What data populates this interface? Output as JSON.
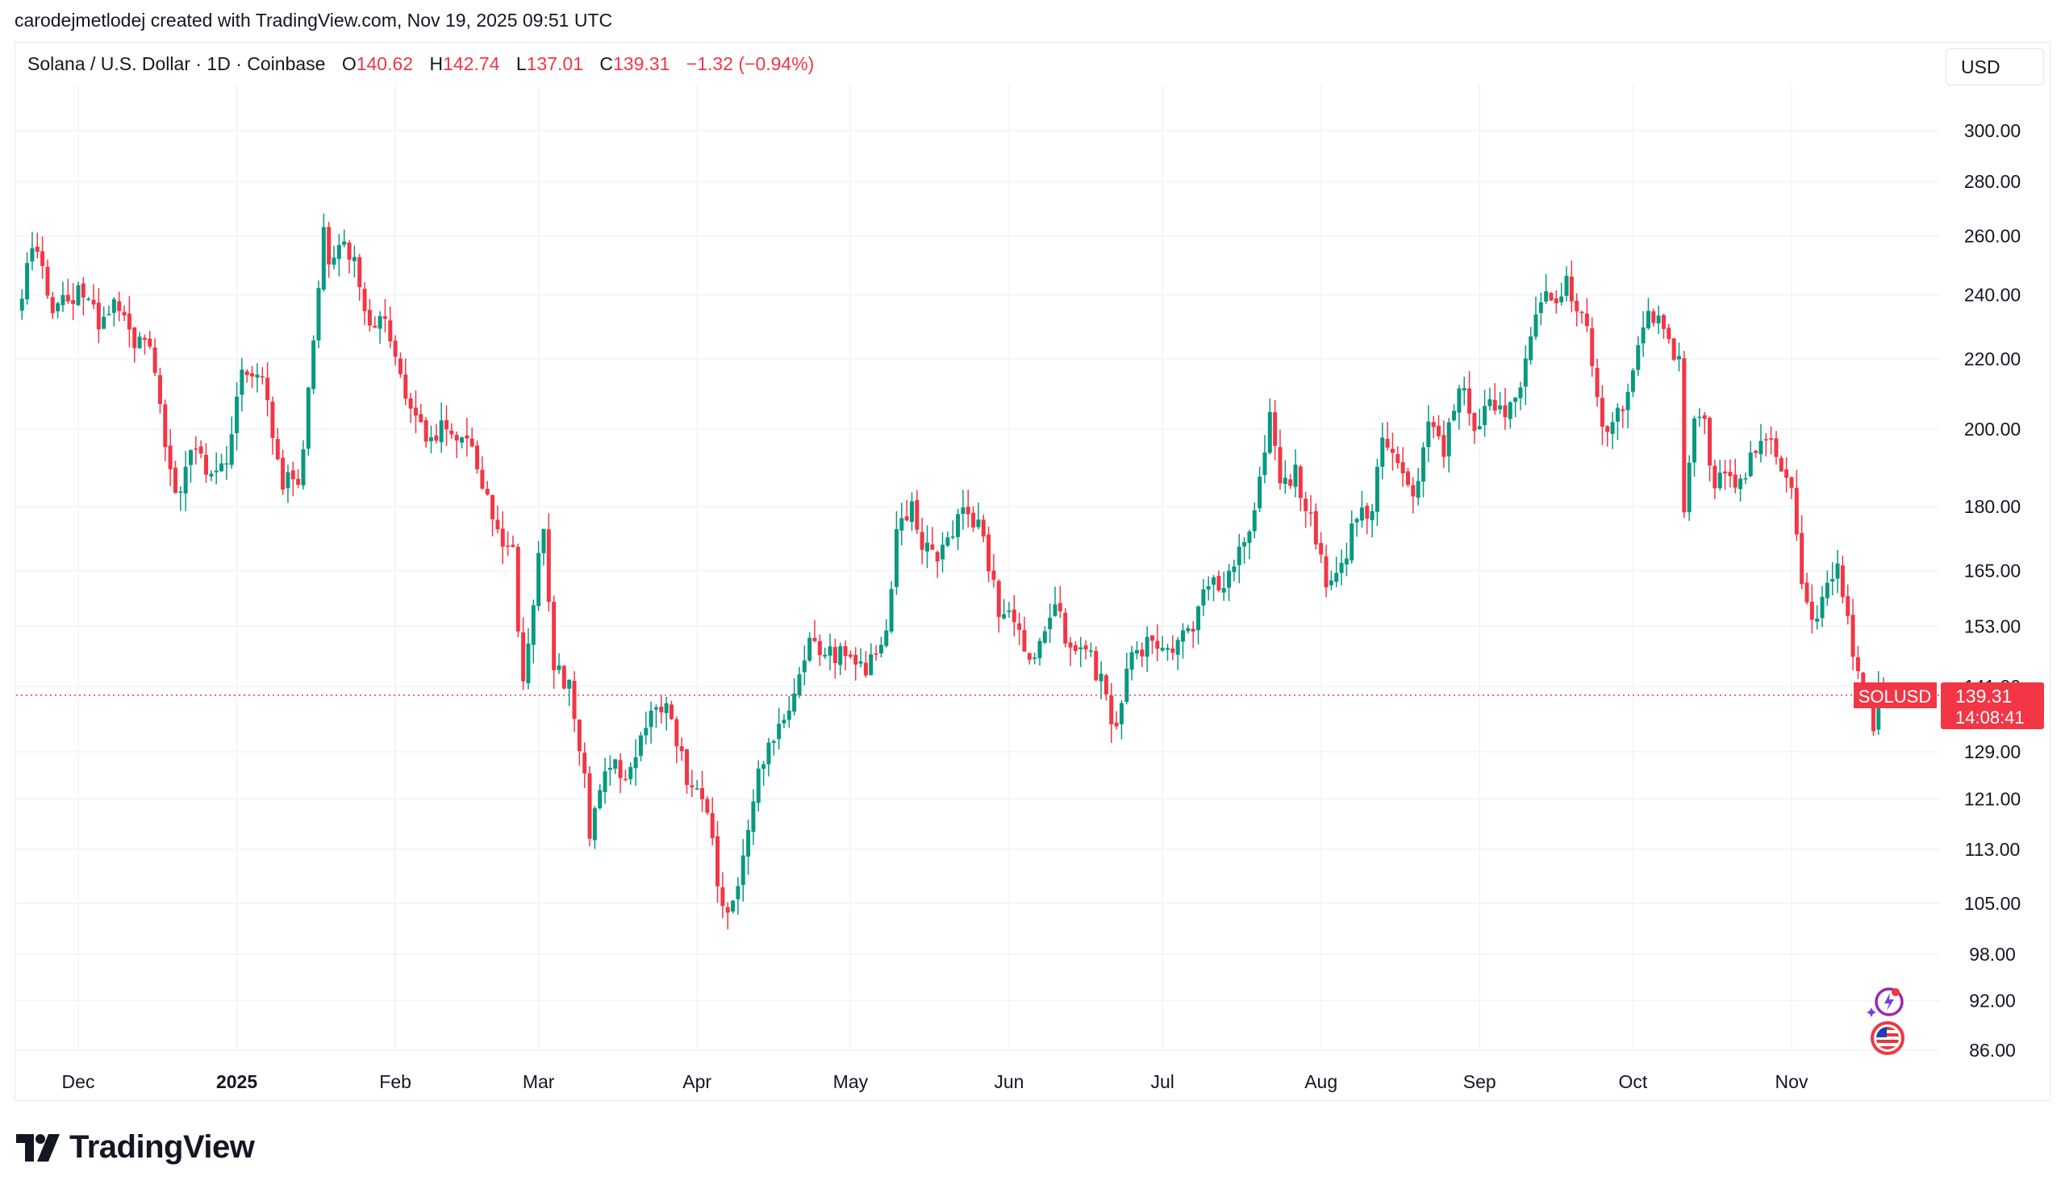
{
  "header": {
    "credit": "carodejmetlodej created with TradingView.com, Nov 19, 2025 09:51 UTC"
  },
  "legend": {
    "symbol": "Solana / U.S. Dollar · 1D · Coinbase",
    "open_label": "O",
    "open": "140.62",
    "high_label": "H",
    "high": "142.74",
    "low_label": "L",
    "low": "137.01",
    "close_label": "C",
    "close": "139.31",
    "change": "−1.32 (−0.94%)"
  },
  "currency": "USD",
  "price_tag": {
    "ticker": "SOLUSD",
    "price": "139.31",
    "countdown": "14:08:41"
  },
  "brand": "TradingView",
  "colors": {
    "up": "#089981",
    "down": "#f23645",
    "grid": "#f0f3fa",
    "axis_text": "#131722"
  },
  "icons": [
    "tradingview-logo-icon",
    "ai-spark-badge-icon",
    "us-flag-badge-icon"
  ],
  "chart_data": {
    "type": "candlestick",
    "title": "Solana / U.S. Dollar · 1D · Coinbase",
    "scale": "log",
    "y_ticks": [
      300,
      280,
      260,
      240,
      220,
      200,
      180,
      165,
      153,
      141,
      129,
      121,
      113,
      105,
      98,
      92,
      86
    ],
    "y_tick_labels": [
      "300.00",
      "280.00",
      "260.00",
      "240.00",
      "220.00",
      "200.00",
      "180.00",
      "165.00",
      "153.00",
      "141.00",
      "129.00",
      "121.00",
      "113.00",
      "105.00",
      "98.00",
      "92.00",
      "86.00"
    ],
    "x_ticks": [
      {
        "label": "Dec",
        "date": "2024-12-01",
        "bold": false
      },
      {
        "label": "2025",
        "date": "2025-01-01",
        "bold": true
      },
      {
        "label": "Feb",
        "date": "2025-02-01",
        "bold": false
      },
      {
        "label": "Mar",
        "date": "2025-03-01",
        "bold": false
      },
      {
        "label": "Apr",
        "date": "2025-04-01",
        "bold": false
      },
      {
        "label": "May",
        "date": "2025-05-01",
        "bold": false
      },
      {
        "label": "Jun",
        "date": "2025-06-01",
        "bold": false
      },
      {
        "label": "Jul",
        "date": "2025-07-01",
        "bold": false
      },
      {
        "label": "Aug",
        "date": "2025-08-01",
        "bold": false
      },
      {
        "label": "Sep",
        "date": "2025-09-01",
        "bold": false
      },
      {
        "label": "Oct",
        "date": "2025-10-01",
        "bold": false
      },
      {
        "label": "Nov",
        "date": "2025-11-01",
        "bold": false
      }
    ],
    "x_range": [
      "2024-11-20",
      "2025-12-11"
    ],
    "ylim": [
      86,
      310
    ],
    "current_price": 139.31,
    "close_path": [
      {
        "date": "2024-11-20",
        "close": 238
      },
      {
        "date": "2024-11-22",
        "close": 258
      },
      {
        "date": "2024-11-26",
        "close": 236
      },
      {
        "date": "2024-12-01",
        "close": 240
      },
      {
        "date": "2024-12-05",
        "close": 232
      },
      {
        "date": "2024-12-08",
        "close": 236
      },
      {
        "date": "2024-12-12",
        "close": 226
      },
      {
        "date": "2024-12-15",
        "close": 221
      },
      {
        "date": "2024-12-19",
        "close": 190
      },
      {
        "date": "2024-12-21",
        "close": 182
      },
      {
        "date": "2024-12-23",
        "close": 195
      },
      {
        "date": "2024-12-27",
        "close": 188
      },
      {
        "date": "2024-12-30",
        "close": 192
      },
      {
        "date": "2025-01-02",
        "close": 214
      },
      {
        "date": "2025-01-06",
        "close": 216
      },
      {
        "date": "2025-01-08",
        "close": 196
      },
      {
        "date": "2025-01-10",
        "close": 187
      },
      {
        "date": "2025-01-13",
        "close": 184
      },
      {
        "date": "2025-01-15",
        "close": 210
      },
      {
        "date": "2025-01-18",
        "close": 262
      },
      {
        "date": "2025-01-19",
        "close": 248
      },
      {
        "date": "2025-01-21",
        "close": 258
      },
      {
        "date": "2025-01-24",
        "close": 252
      },
      {
        "date": "2025-01-27",
        "close": 230
      },
      {
        "date": "2025-01-30",
        "close": 232
      },
      {
        "date": "2025-02-03",
        "close": 208
      },
      {
        "date": "2025-02-07",
        "close": 196
      },
      {
        "date": "2025-02-10",
        "close": 200
      },
      {
        "date": "2025-02-14",
        "close": 198
      },
      {
        "date": "2025-02-17",
        "close": 192
      },
      {
        "date": "2025-02-20",
        "close": 178
      },
      {
        "date": "2025-02-24",
        "close": 168
      },
      {
        "date": "2025-02-26",
        "close": 140
      },
      {
        "date": "2025-03-02",
        "close": 177
      },
      {
        "date": "2025-03-04",
        "close": 145
      },
      {
        "date": "2025-03-07",
        "close": 141
      },
      {
        "date": "2025-03-10",
        "close": 126
      },
      {
        "date": "2025-03-11",
        "close": 115
      },
      {
        "date": "2025-03-14",
        "close": 127
      },
      {
        "date": "2025-03-18",
        "close": 126
      },
      {
        "date": "2025-03-21",
        "close": 132
      },
      {
        "date": "2025-03-24",
        "close": 138
      },
      {
        "date": "2025-03-27",
        "close": 135
      },
      {
        "date": "2025-03-30",
        "close": 124
      },
      {
        "date": "2025-04-03",
        "close": 120
      },
      {
        "date": "2025-04-06",
        "close": 104
      },
      {
        "date": "2025-04-08",
        "close": 105
      },
      {
        "date": "2025-04-10",
        "close": 112
      },
      {
        "date": "2025-04-13",
        "close": 127
      },
      {
        "date": "2025-04-17",
        "close": 133
      },
      {
        "date": "2025-04-20",
        "close": 139
      },
      {
        "date": "2025-04-23",
        "close": 150
      },
      {
        "date": "2025-04-26",
        "close": 147
      },
      {
        "date": "2025-04-30",
        "close": 147
      },
      {
        "date": "2025-05-04",
        "close": 144
      },
      {
        "date": "2025-05-08",
        "close": 150
      },
      {
        "date": "2025-05-10",
        "close": 172
      },
      {
        "date": "2025-05-13",
        "close": 180
      },
      {
        "date": "2025-05-15",
        "close": 170
      },
      {
        "date": "2025-05-18",
        "close": 167
      },
      {
        "date": "2025-05-21",
        "close": 174
      },
      {
        "date": "2025-05-23",
        "close": 178
      },
      {
        "date": "2025-05-26",
        "close": 175
      },
      {
        "date": "2025-05-30",
        "close": 157
      },
      {
        "date": "2025-06-02",
        "close": 155
      },
      {
        "date": "2025-06-05",
        "close": 146
      },
      {
        "date": "2025-06-07",
        "close": 150
      },
      {
        "date": "2025-06-10",
        "close": 158
      },
      {
        "date": "2025-06-13",
        "close": 147
      },
      {
        "date": "2025-06-16",
        "close": 149
      },
      {
        "date": "2025-06-19",
        "close": 142
      },
      {
        "date": "2025-06-22",
        "close": 133
      },
      {
        "date": "2025-06-24",
        "close": 144
      },
      {
        "date": "2025-06-27",
        "close": 149
      },
      {
        "date": "2025-07-01",
        "close": 148
      },
      {
        "date": "2025-07-04",
        "close": 150
      },
      {
        "date": "2025-07-07",
        "close": 152
      },
      {
        "date": "2025-07-10",
        "close": 163
      },
      {
        "date": "2025-07-13",
        "close": 162
      },
      {
        "date": "2025-07-16",
        "close": 170
      },
      {
        "date": "2025-07-19",
        "close": 180
      },
      {
        "date": "2025-07-22",
        "close": 203
      },
      {
        "date": "2025-07-24",
        "close": 187
      },
      {
        "date": "2025-07-27",
        "close": 188
      },
      {
        "date": "2025-07-30",
        "close": 177
      },
      {
        "date": "2025-08-02",
        "close": 162
      },
      {
        "date": "2025-08-05",
        "close": 165
      },
      {
        "date": "2025-08-08",
        "close": 178
      },
      {
        "date": "2025-08-11",
        "close": 180
      },
      {
        "date": "2025-08-13",
        "close": 200
      },
      {
        "date": "2025-08-16",
        "close": 190
      },
      {
        "date": "2025-08-19",
        "close": 182
      },
      {
        "date": "2025-08-22",
        "close": 200
      },
      {
        "date": "2025-08-25",
        "close": 195
      },
      {
        "date": "2025-08-28",
        "close": 212
      },
      {
        "date": "2025-08-31",
        "close": 202
      },
      {
        "date": "2025-09-03",
        "close": 207
      },
      {
        "date": "2025-09-06",
        "close": 203
      },
      {
        "date": "2025-09-09",
        "close": 213
      },
      {
        "date": "2025-09-12",
        "close": 232
      },
      {
        "date": "2025-09-14",
        "close": 240
      },
      {
        "date": "2025-09-16",
        "close": 235
      },
      {
        "date": "2025-09-18",
        "close": 245
      },
      {
        "date": "2025-09-19",
        "close": 238
      },
      {
        "date": "2025-09-21",
        "close": 236
      },
      {
        "date": "2025-09-23",
        "close": 218
      },
      {
        "date": "2025-09-25",
        "close": 200
      },
      {
        "date": "2025-09-26",
        "close": 197
      },
      {
        "date": "2025-09-28",
        "close": 206
      },
      {
        "date": "2025-09-30",
        "close": 210
      },
      {
        "date": "2025-10-03",
        "close": 232
      },
      {
        "date": "2025-10-06",
        "close": 234
      },
      {
        "date": "2025-10-08",
        "close": 223
      },
      {
        "date": "2025-10-10",
        "close": 220
      },
      {
        "date": "2025-10-11",
        "close": 178
      },
      {
        "date": "2025-10-13",
        "close": 205
      },
      {
        "date": "2025-10-15",
        "close": 200
      },
      {
        "date": "2025-10-17",
        "close": 185
      },
      {
        "date": "2025-10-20",
        "close": 188
      },
      {
        "date": "2025-10-22",
        "close": 185
      },
      {
        "date": "2025-10-24",
        "close": 193
      },
      {
        "date": "2025-10-26",
        "close": 198
      },
      {
        "date": "2025-10-28",
        "close": 197
      },
      {
        "date": "2025-10-30",
        "close": 188
      },
      {
        "date": "2025-11-01",
        "close": 186
      },
      {
        "date": "2025-11-03",
        "close": 162
      },
      {
        "date": "2025-11-04",
        "close": 156
      },
      {
        "date": "2025-11-06",
        "close": 156
      },
      {
        "date": "2025-11-08",
        "close": 162
      },
      {
        "date": "2025-11-10",
        "close": 165
      },
      {
        "date": "2025-11-12",
        "close": 155
      },
      {
        "date": "2025-11-14",
        "close": 142
      },
      {
        "date": "2025-11-15",
        "close": 141
      },
      {
        "date": "2025-11-16",
        "close": 137
      },
      {
        "date": "2025-11-17",
        "close": 131
      },
      {
        "date": "2025-11-18",
        "close": 140.63
      },
      {
        "date": "2025-11-19",
        "close": 139.31
      }
    ]
  }
}
